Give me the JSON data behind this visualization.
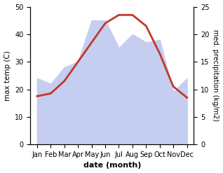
{
  "months": [
    "Jan",
    "Feb",
    "Mar",
    "Apr",
    "May",
    "Jun",
    "Jul",
    "Aug",
    "Sep",
    "Oct",
    "Nov",
    "Dec"
  ],
  "x": [
    1,
    2,
    3,
    4,
    5,
    6,
    7,
    8,
    9,
    10,
    11,
    12
  ],
  "temp": [
    17.5,
    18.5,
    23,
    30,
    37,
    44,
    47,
    47,
    43,
    33,
    21,
    17
  ],
  "precip_left": [
    24,
    22,
    28,
    30,
    45,
    45,
    35,
    40,
    37,
    38,
    19,
    24
  ],
  "temp_color": "#c0392b",
  "precip_fill_color": "#c5cdf0",
  "precip_alpha": 1.0,
  "left_ylim": [
    0,
    50
  ],
  "right_ylim": [
    0,
    25
  ],
  "left_yticks": [
    0,
    10,
    20,
    30,
    40,
    50
  ],
  "right_yticks": [
    0,
    5,
    10,
    15,
    20,
    25
  ],
  "xlabel": "date (month)",
  "ylabel_left": "max temp (C)",
  "ylabel_right": "med. precipitation (kg/m2)",
  "temp_linewidth": 2.0,
  "bg_color": "#ffffff"
}
